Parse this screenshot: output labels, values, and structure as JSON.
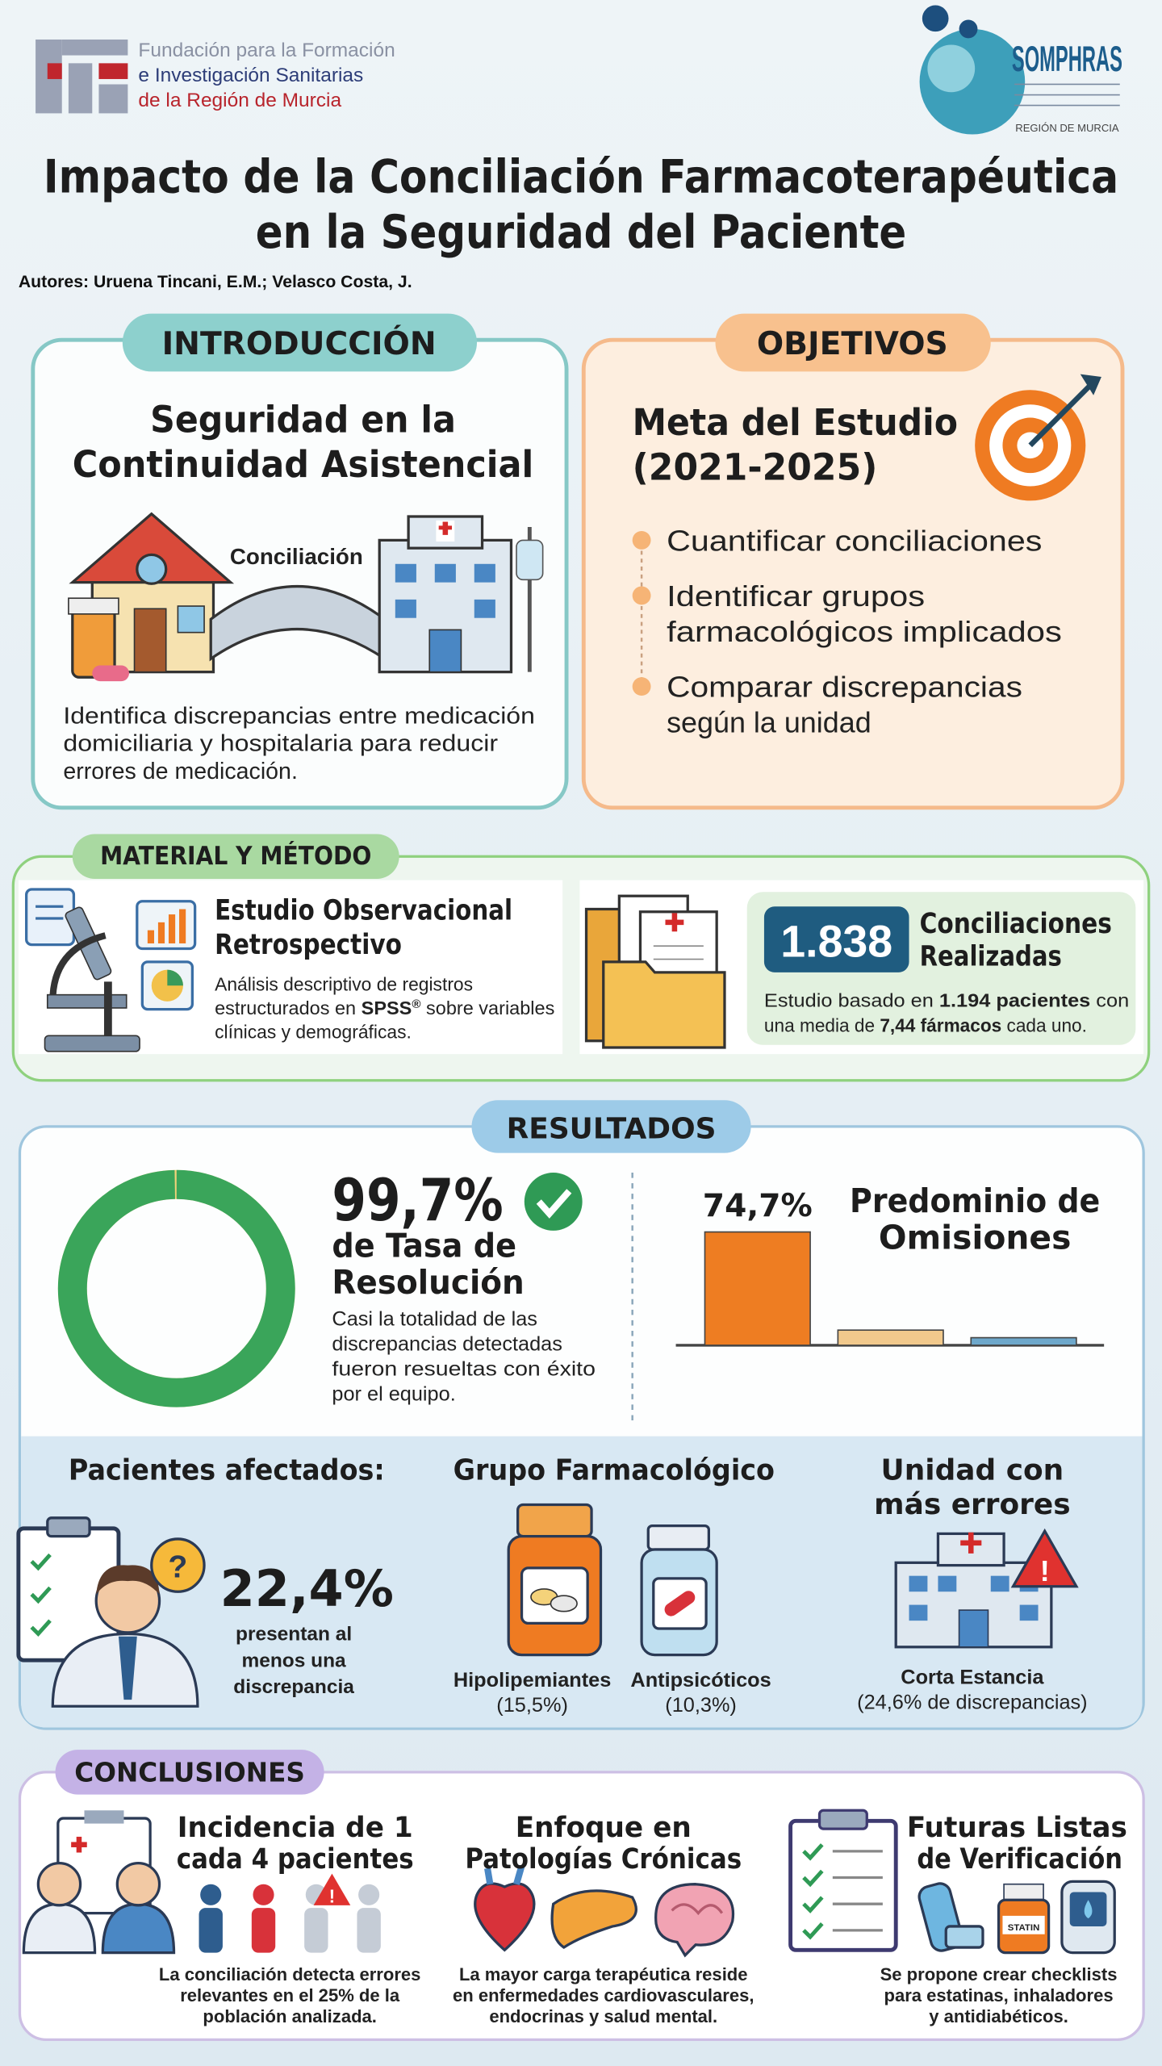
{
  "header": {
    "org_logo_lines": [
      "Fundación para la Formación",
      "e Investigación Sanitarias",
      "de la Región de Murcia"
    ],
    "society_name": "SOMPHRAS",
    "society_region": "REGIÓN DE MURCIA",
    "title_lines": [
      "Impacto de la Conciliación Farmacoterapéutica",
      "en la Seguridad del Paciente"
    ],
    "authors": "Autores: Uruena Tincani, E.M.; Velasco Costa, J."
  },
  "introduccion": {
    "label": "INTRODUCCIÓN",
    "heading_lines": [
      "Seguridad en la",
      "Continuidad Asistencial"
    ],
    "illustration_label": "Conciliación",
    "text_lines": [
      "Identifica discrepancias entre medicación",
      "domiciliaria y hospitalaria para reducir",
      "errores de medicación."
    ]
  },
  "objetivos": {
    "label": "OBJETIVOS",
    "heading_lines": [
      "Meta del Estudio",
      "(2021-2025)"
    ],
    "items": [
      [
        "Cuantificar conciliaciones"
      ],
      [
        "Identificar grupos",
        "farmacológicos implicados"
      ],
      [
        "Comparar discrepancias",
        "según la unidad"
      ]
    ]
  },
  "material_metodo": {
    "label": "MATERIAL Y MÉTODO",
    "study_heading_lines": [
      "Estudio Observacional",
      "Retrospectivo"
    ],
    "study_text_lines": [
      [
        "Análisis descriptivo de registros"
      ],
      [
        "estructurados en ",
        "SPSS",
        "®",
        " sobre variables"
      ],
      [
        "clínicas y demográficas."
      ]
    ],
    "total_label": "1.838",
    "total_heading_lines": [
      "Conciliaciones",
      "Realizadas"
    ],
    "note_lines": [
      [
        "Estudio basado en ",
        "1.194 pacientes",
        " con"
      ],
      [
        "una media de ",
        "7,44 fármacos",
        " cada uno."
      ]
    ]
  },
  "resultados": {
    "label": "RESULTADOS",
    "resolucion": {
      "value": 99.7,
      "value_label": "99,7%",
      "heading_lines": [
        "de Tasa de",
        "Resolución"
      ],
      "text_lines": [
        "Casi la totalidad de las",
        "discrepancias detectadas",
        "fueron resueltas con éxito",
        "por el equipo."
      ]
    },
    "omisiones": {
      "heading_lines": [
        "Predominio de",
        "Omisiones"
      ],
      "values": [
        74.7,
        10,
        5
      ],
      "value_labels": [
        "74,7%",
        null,
        null
      ],
      "colors": [
        "#ee7d22",
        "#f1c98c",
        "#6ea8cb"
      ]
    },
    "pacientes": {
      "heading": "Pacientes afectados:",
      "value_label": "22,4%",
      "text_lines": [
        "presentan al",
        "menos una",
        "discrepancia"
      ]
    },
    "grupo": {
      "heading": "Grupo Farmacológico",
      "items": [
        {
          "name": "Hipolipemiantes",
          "value_label": "(15,5%)"
        },
        {
          "name": "Antipsicóticos",
          "value_label": "(10,3%)"
        }
      ]
    },
    "unidad": {
      "heading_lines": [
        "Unidad con",
        "más errores"
      ],
      "name": "Corta Estancia",
      "detail": "(24,6% de discrepancias)"
    }
  },
  "conclusiones": {
    "label": "CONCLUSIONES",
    "items": [
      {
        "heading_lines": [
          "Incidencia de 1",
          "cada 4 pacientes"
        ],
        "text_lines": [
          "La conciliación detecta errores",
          "relevantes en el 25% de la",
          "población analizada."
        ]
      },
      {
        "heading_lines": [
          "Enfoque en",
          "Patologías Crónicas"
        ],
        "text_lines": [
          "La mayor carga terapéutica reside",
          "en enfermedades cardiovasculares,",
          "endocrinas y salud mental."
        ]
      },
      {
        "heading_lines": [
          "Futuras Listas",
          "de Verificación"
        ],
        "text_lines": [
          "Se propone crear checklists",
          "para estatinas, inhaladores",
          "y antidiabéticos."
        ]
      }
    ],
    "statin_label": "STATIN"
  }
}
